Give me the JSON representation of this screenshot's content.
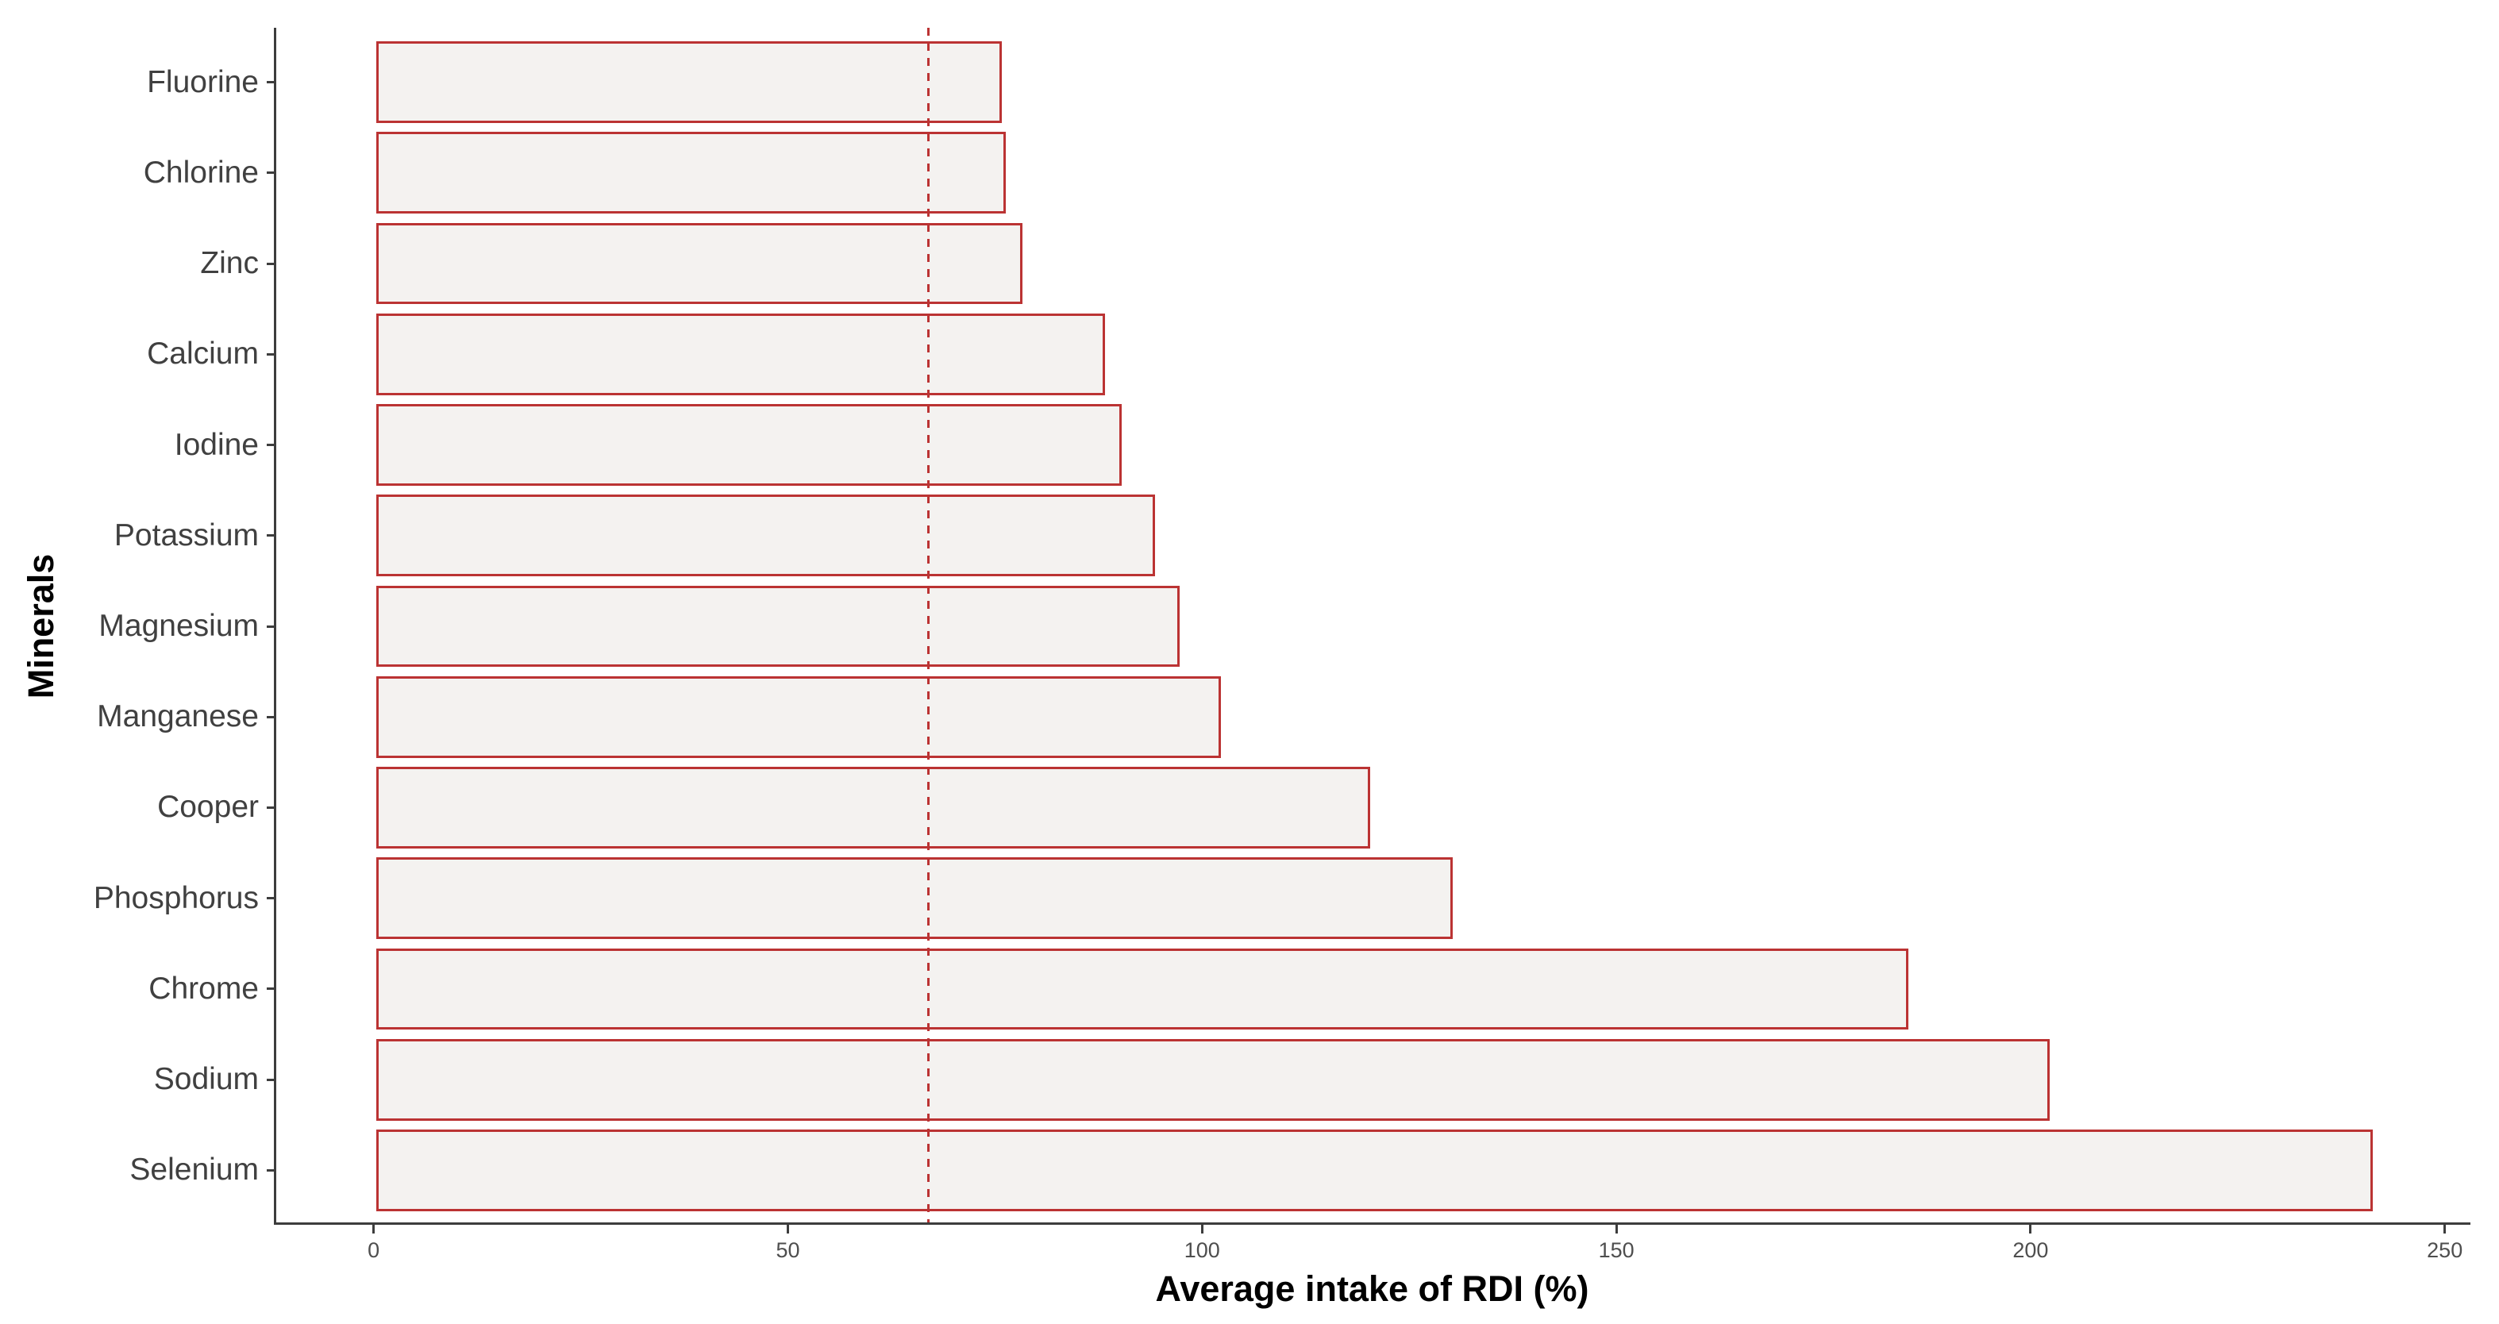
{
  "chart_data": {
    "type": "bar",
    "orientation": "horizontal",
    "title": "",
    "xlabel": "Average intake of RDI (%)",
    "ylabel": "Minerals",
    "categories": [
      "Fluorine",
      "Chlorine",
      "Zinc",
      "Calcium",
      "Iodine",
      "Potassium",
      "Magnesium",
      "Manganese",
      "Cooper",
      "Phosphorus",
      "Chrome",
      "Sodium",
      "Selenium"
    ],
    "values": [
      75.5,
      76,
      78,
      88,
      90,
      94,
      97,
      102,
      120,
      130,
      185,
      202,
      241
    ],
    "xticks": [
      0,
      50,
      100,
      150,
      200,
      250
    ],
    "xlim": [
      0,
      250
    ],
    "reference_line": {
      "value": 66.7,
      "style": "dashed"
    },
    "grid": false,
    "legend": "none",
    "colors": {
      "bar_fill": "#f4f2f0",
      "bar_border": "#bb3333",
      "reference_line": "#bb3333",
      "axis_line": "#3d3d3d",
      "x_tick_label": "#4e4e4e",
      "category_label": "#404040",
      "axis_title": "#000000"
    }
  }
}
